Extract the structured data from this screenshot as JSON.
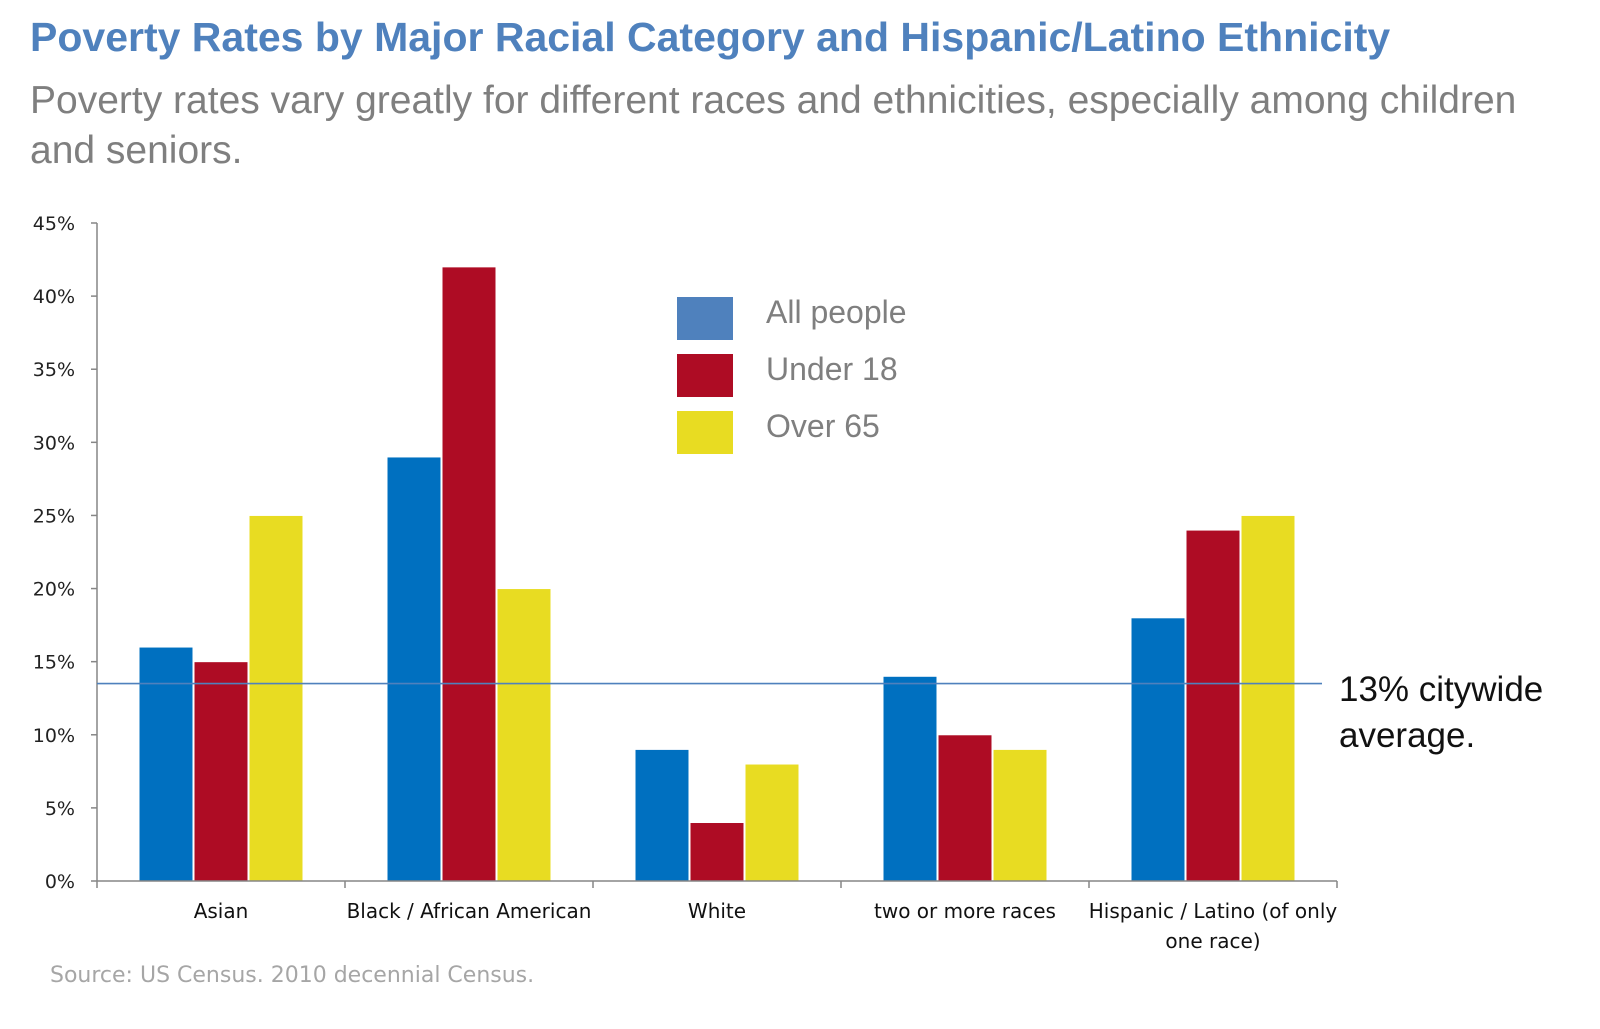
{
  "title": "Poverty Rates by Major Racial Category and Hispanic/Latino Ethnicity",
  "subtitle": "Poverty rates vary greatly for different races and ethnicities, especially among children and seniors.",
  "source": "Source:  US Census. 2010 decennial Census.",
  "chart_data": {
    "type": "bar",
    "categories": [
      [
        "Asian"
      ],
      [
        "Black / African American"
      ],
      [
        "White"
      ],
      [
        "two or more races"
      ],
      [
        "Hispanic / Latino (of only",
        "one race)"
      ]
    ],
    "series": [
      {
        "name": "All people",
        "color": "#0070c0",
        "values": [
          16,
          29,
          9,
          14,
          18
        ]
      },
      {
        "name": "Under 18",
        "color": "#ae0c24",
        "values": [
          15,
          42,
          4,
          10,
          24
        ]
      },
      {
        "name": "Over 65",
        "color": "#e8dc22",
        "values": [
          25,
          20,
          8,
          9,
          25
        ]
      }
    ],
    "legend_swatch_colors": [
      "#4f81bd",
      "#ae0c24",
      "#e8dc22"
    ],
    "ylim": [
      0,
      45
    ],
    "yticks": [
      0,
      5,
      10,
      15,
      20,
      25,
      30,
      35,
      40,
      45
    ],
    "ytick_labels": [
      "0%",
      "5%",
      "10%",
      "15%",
      "20%",
      "25%",
      "30%",
      "35%",
      "40%",
      "45%"
    ],
    "reference_line": {
      "value": 13.5,
      "color": "#4f81bd",
      "label": [
        "13% citywide",
        "average."
      ]
    },
    "legend_position": "top-center",
    "grid": false,
    "xlabel": "",
    "ylabel": ""
  }
}
